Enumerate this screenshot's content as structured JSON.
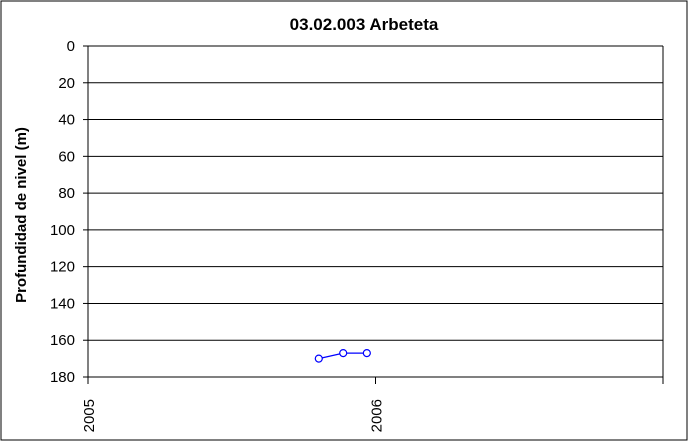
{
  "chart_data": {
    "type": "line",
    "title": "03.02.003 Arbeteta",
    "xlabel": "",
    "ylabel": "Profundidad de nivel (m)",
    "x_ticks": [
      "2005",
      "2006"
    ],
    "xlim": [
      "2005-01-01",
      "2007-01-01"
    ],
    "y_ticks": [
      0,
      20,
      40,
      60,
      80,
      100,
      120,
      140,
      160,
      180
    ],
    "ylim": [
      0,
      180
    ],
    "y_inverted": true,
    "grid": true,
    "legend": "none",
    "series": [
      {
        "color": "#0000ff",
        "marker": "circle-open",
        "points": [
          {
            "x": "2005-10-21",
            "y": 170
          },
          {
            "x": "2005-11-21",
            "y": 167
          },
          {
            "x": "2005-12-21",
            "y": 167
          }
        ]
      }
    ]
  }
}
